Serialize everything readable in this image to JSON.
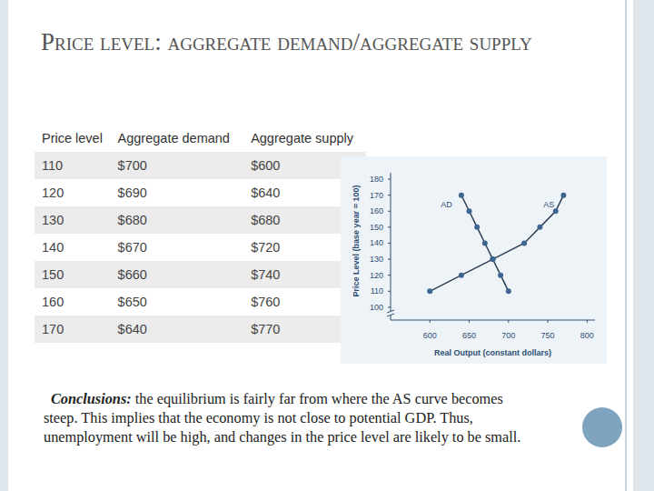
{
  "slide": {
    "title": "Price level: aggregate demand/aggregate supply",
    "table": {
      "header": [
        "Price level",
        "Aggregate demand",
        "Aggregate supply"
      ],
      "rows": [
        [
          "110",
          "$700",
          "$600"
        ],
        [
          "120",
          "$690",
          "$640"
        ],
        [
          "130",
          "$680",
          "$680"
        ],
        [
          "140",
          "$670",
          "$720"
        ],
        [
          "150",
          "$660",
          "$740"
        ],
        [
          "160",
          "$650",
          "$760"
        ],
        [
          "170",
          "$640",
          "$770"
        ]
      ]
    },
    "conclusions": {
      "label": "Conclusions:",
      "text": "the equilibrium is fairly far from where the AS curve becomes steep. This implies that the economy is not close to potential GDP. Thus, unemployment will be high, and changes in the price level are likely to be small."
    }
  },
  "chart_data": {
    "type": "line",
    "x_label": "Real Output (constant dollars)",
    "y_label": "Price Level (base year = 100)",
    "xlim": [
      550,
      810
    ],
    "ylim": [
      92,
      184
    ],
    "xticks": [
      600,
      650,
      700,
      750,
      800
    ],
    "yticks": [
      100,
      110,
      120,
      130,
      140,
      150,
      160,
      170,
      180
    ],
    "grid": false,
    "marker": "circle",
    "series": [
      {
        "name": "AD",
        "color": "#2e3f55",
        "x": [
          700,
          690,
          680,
          670,
          660,
          650,
          640
        ],
        "values": [
          110,
          120,
          130,
          140,
          150,
          160,
          170
        ]
      },
      {
        "name": "AS",
        "color": "#2e3f55",
        "x": [
          600,
          640,
          680,
          720,
          740,
          760,
          770
        ],
        "values": [
          110,
          120,
          130,
          140,
          150,
          160,
          170
        ]
      }
    ]
  }
}
